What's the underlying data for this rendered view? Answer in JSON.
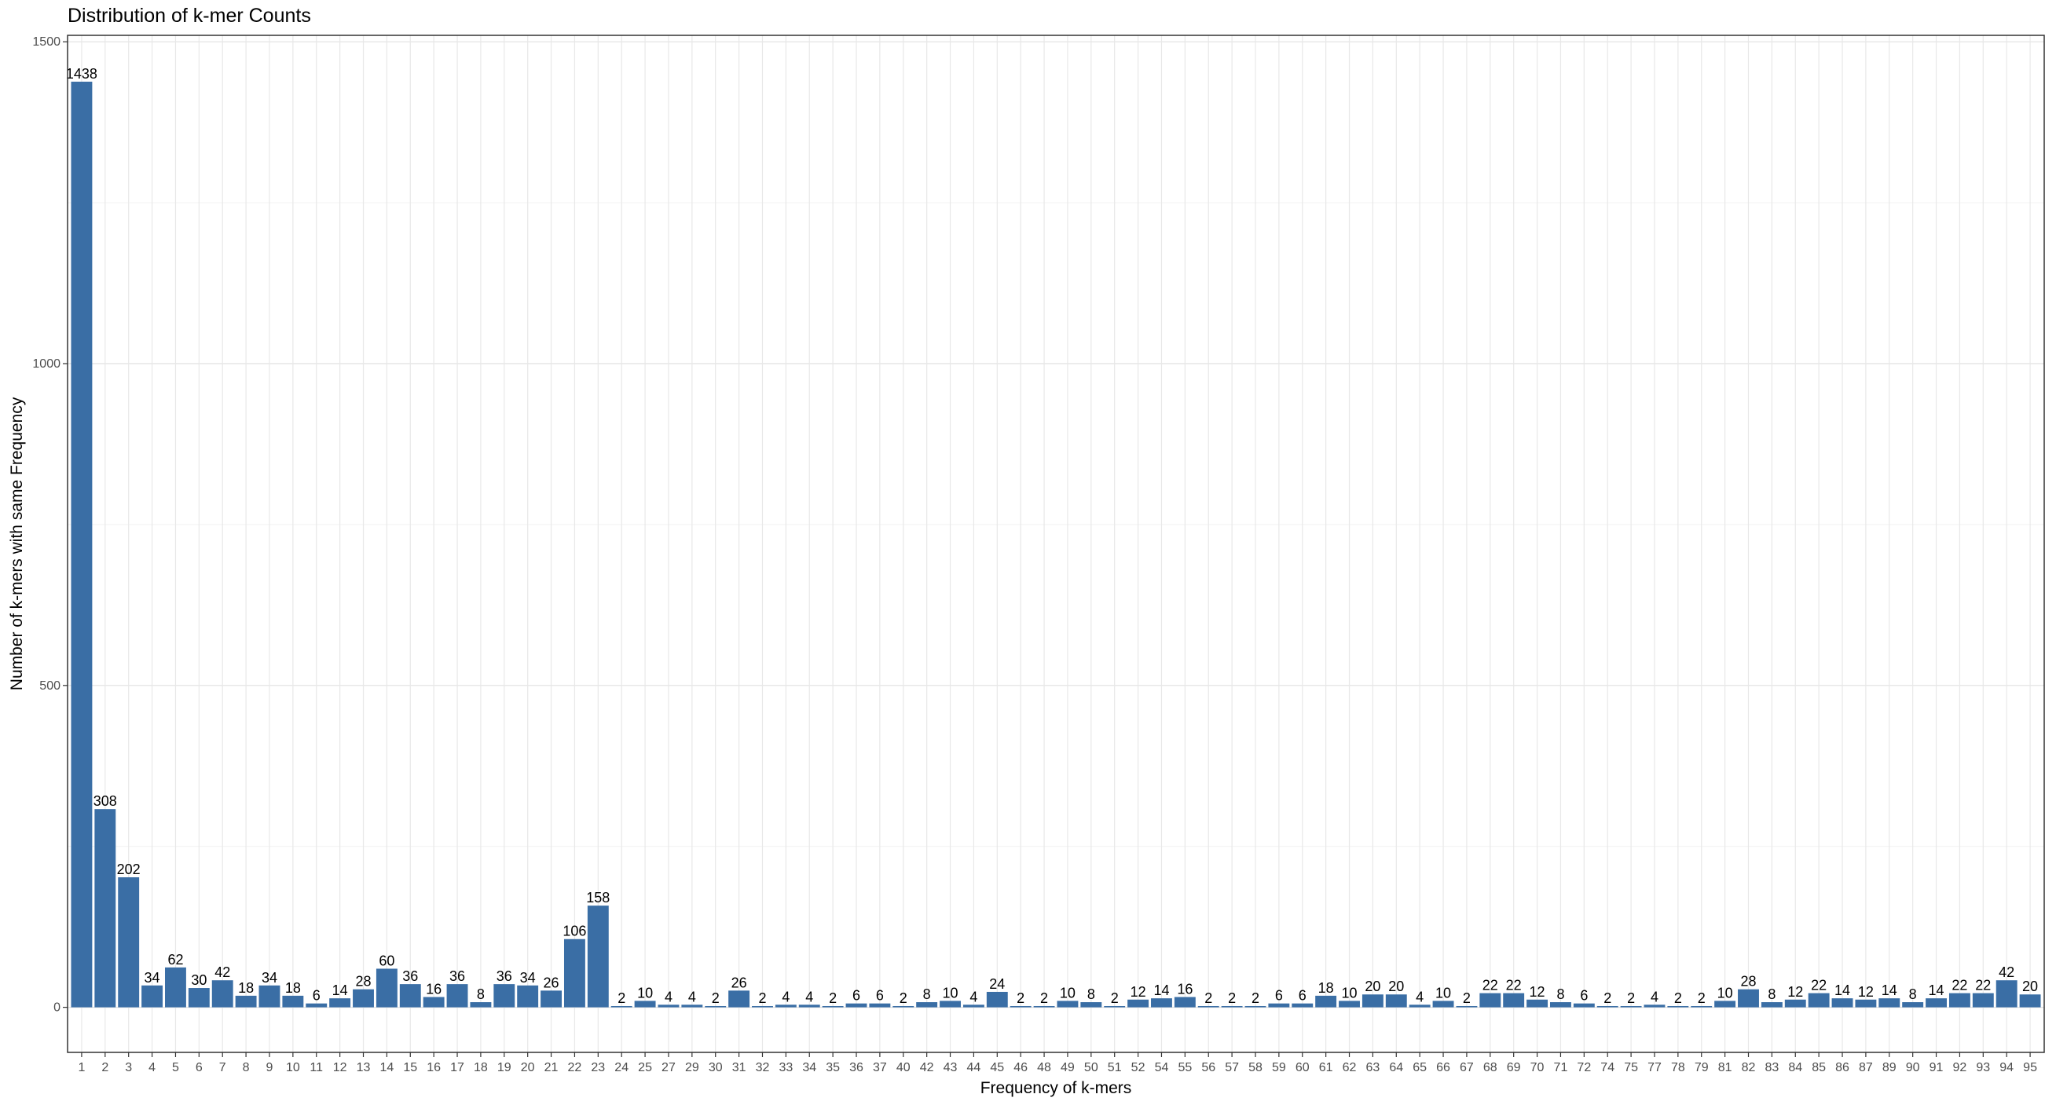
{
  "chart_data": {
    "type": "bar",
    "title": "Distribution of k-mer Counts",
    "xlabel": "Frequency of k-mers",
    "ylabel": "Number of k-mers with same Frequency",
    "ylim": [
      -70,
      1510
    ],
    "yticks": [
      0,
      500,
      1000,
      1500
    ],
    "grid": true,
    "bar_color": "#3a6ea5",
    "categories": [
      "1",
      "2",
      "3",
      "4",
      "5",
      "6",
      "7",
      "8",
      "9",
      "10",
      "11",
      "12",
      "13",
      "14",
      "15",
      "16",
      "17",
      "18",
      "19",
      "20",
      "21",
      "22",
      "23",
      "24",
      "25",
      "27",
      "29",
      "30",
      "31",
      "32",
      "33",
      "34",
      "35",
      "36",
      "37",
      "40",
      "42",
      "43",
      "44",
      "45",
      "46",
      "48",
      "49",
      "50",
      "51",
      "52",
      "54",
      "55",
      "56",
      "57",
      "58",
      "59",
      "60",
      "61",
      "62",
      "63",
      "64",
      "65",
      "66",
      "67",
      "68",
      "69",
      "70",
      "71",
      "72",
      "74",
      "75",
      "77",
      "78",
      "79",
      "81",
      "82",
      "83",
      "84",
      "85",
      "86",
      "87",
      "89",
      "90",
      "91",
      "92",
      "93",
      "94",
      "95"
    ],
    "values": [
      1438,
      308,
      202,
      34,
      62,
      30,
      42,
      18,
      34,
      18,
      6,
      14,
      28,
      60,
      36,
      16,
      36,
      8,
      36,
      34,
      26,
      106,
      158,
      2,
      10,
      4,
      4,
      2,
      26,
      2,
      4,
      4,
      2,
      6,
      6,
      2,
      8,
      10,
      4,
      24,
      2,
      2,
      10,
      8,
      2,
      12,
      14,
      16,
      2,
      2,
      2,
      6,
      6,
      18,
      10,
      20,
      20,
      4,
      10,
      2,
      22,
      22,
      12,
      8,
      6,
      2,
      2,
      4,
      2,
      2,
      10,
      28,
      8,
      12,
      22,
      14,
      12,
      14,
      8,
      14,
      22,
      22,
      42,
      20
    ]
  }
}
